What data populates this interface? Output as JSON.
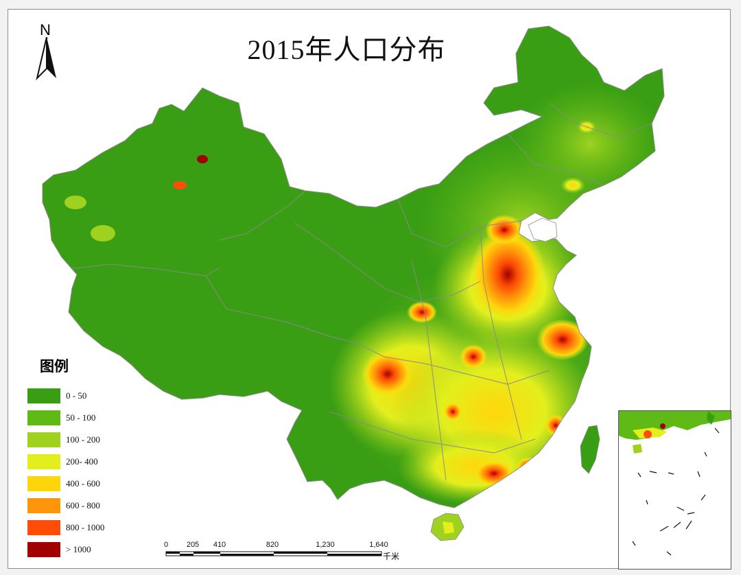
{
  "title": "2015年人口分布",
  "north_label": "N",
  "legend": {
    "title": "图例",
    "items": [
      {
        "label": "0 - 50",
        "color": "#3a9e14"
      },
      {
        "label": "50 - 100",
        "color": "#5fba16"
      },
      {
        "label": "100 - 200",
        "color": "#9fd21f"
      },
      {
        "label": "200- 400",
        "color": "#e3ef1d"
      },
      {
        "label": "400 - 600",
        "color": "#ffd60b"
      },
      {
        "label": "600 - 800",
        "color": "#ff950a"
      },
      {
        "label": "800 - 1000",
        "color": "#ff4c06"
      },
      {
        "label": "> 1000",
        "color": "#a10000"
      }
    ]
  },
  "scale_bar": {
    "ticks": [
      "0",
      "205",
      "410",
      "820",
      "1,230",
      "1,640"
    ],
    "unit": "千米"
  }
}
